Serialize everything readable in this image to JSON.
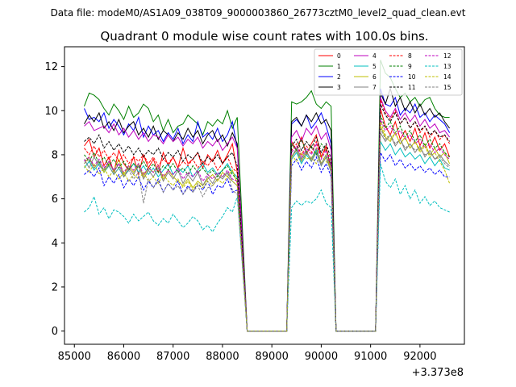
{
  "header": {
    "data_file": "Data file: modeM0/AS1A09_038T09_9000003860_26773cztM0_level2_quad_clean.evt",
    "title": "Quadrant 0 module wise count rates with 100.0s bins."
  },
  "chart_data": {
    "type": "line",
    "title": "Quadrant 0 module wise count rates with 100.0s bins.",
    "xlabel": "",
    "ylabel": "",
    "x_offset_label": "+3.373e8",
    "xlim": [
      84800,
      92900
    ],
    "ylim": [
      -0.6,
      12.9
    ],
    "x_ticks": [
      85000,
      86000,
      87000,
      88000,
      89000,
      90000,
      91000,
      92000
    ],
    "x_tick_labels": [
      "85000",
      "86000",
      "87000",
      "88000",
      "89000",
      "90000",
      "91000",
      "92000"
    ],
    "y_ticks": [
      0,
      2,
      4,
      6,
      8,
      10,
      12
    ],
    "y_tick_labels": [
      "0",
      "2",
      "4",
      "6",
      "8",
      "10",
      "12"
    ],
    "grid": false,
    "legend_position": "top-right",
    "x_segments": [
      [
        85200,
        88300
      ],
      [
        89400,
        90200
      ],
      [
        91200,
        92600
      ]
    ],
    "gap_x": [
      88500,
      88700,
      88900,
      89100,
      89300,
      90300,
      90500,
      90700,
      90900,
      91100
    ],
    "bin_seconds": 100,
    "series": [
      {
        "name": "0",
        "color": "#ff0000",
        "dash": "solid",
        "values": [
          [
            8.4,
            8.7,
            7.9,
            8.3,
            7.5,
            7.9,
            7.2,
            8.2,
            7.6,
            7.3,
            7.9,
            7.1,
            8.0,
            7.4,
            7.8,
            7.2,
            8.1,
            7.5,
            7.9,
            7.4,
            8.3,
            7.6,
            7.8,
            8.1,
            7.4,
            8.0,
            7.7,
            8.2,
            7.6,
            8.0,
            8.5,
            7.2
          ],
          [
            8.6,
            8.2,
            8.8,
            8.0,
            8.5,
            8.9,
            7.9,
            8.4,
            7.2
          ],
          [
            10.1,
            9.3,
            8.9,
            9.5,
            8.7,
            9.1,
            8.6,
            9.2,
            8.4,
            9.0,
            8.3,
            8.8,
            8.2,
            8.5,
            7.9
          ]
        ]
      },
      {
        "name": "1",
        "color": "#008000",
        "dash": "solid",
        "values": [
          [
            10.2,
            10.8,
            10.7,
            10.5,
            10.1,
            9.8,
            10.3,
            10.0,
            9.6,
            10.2,
            9.7,
            9.9,
            10.3,
            10.1,
            9.5,
            9.8,
            9.1,
            9.6,
            9.0,
            9.3,
            9.4,
            9.8,
            9.6,
            9.4,
            8.9,
            9.5,
            9.3,
            9.6,
            9.4,
            10.0,
            9.2,
            9.7
          ],
          [
            10.4,
            10.3,
            10.4,
            10.6,
            10.9,
            10.3,
            10.1,
            10.4,
            10.2
          ],
          [
            12.3,
            11.7,
            11.5,
            11.0,
            10.6,
            10.8,
            10.4,
            10.6,
            10.2,
            10.5,
            10.6,
            10.1,
            9.8,
            9.7,
            9.7
          ]
        ]
      },
      {
        "name": "2",
        "color": "#0000ff",
        "dash": "solid",
        "values": [
          [
            10.1,
            9.6,
            9.7,
            9.5,
            9.9,
            9.2,
            9.6,
            9.3,
            8.9,
            9.4,
            9.1,
            9.7,
            8.8,
            9.3,
            8.9,
            9.1,
            8.6,
            9.0,
            8.7,
            9.2,
            8.5,
            8.9,
            8.6,
            9.5,
            8.8,
            9.0,
            8.7,
            9.2,
            8.6,
            8.9,
            9.5,
            8.3
          ],
          [
            9.4,
            9.6,
            9.3,
            9.8,
            9.2,
            9.5,
            9.9,
            9.3,
            8.5
          ],
          [
            11.0,
            10.3,
            10.2,
            10.6,
            9.8,
            10.1,
            9.9,
            10.3,
            9.7,
            9.9,
            9.5,
            9.8,
            9.6,
            9.4,
            9.0
          ]
        ]
      },
      {
        "name": "3",
        "color": "#000000",
        "dash": "solid",
        "values": [
          [
            9.4,
            9.8,
            9.5,
            9.9,
            9.2,
            9.5,
            9.1,
            9.6,
            9.0,
            9.3,
            9.5,
            8.9,
            9.2,
            8.8,
            9.3,
            8.7,
            9.1,
            8.9,
            8.6,
            9.0,
            8.7,
            9.2,
            8.8,
            9.1,
            8.5,
            8.9,
            9.1,
            8.6,
            8.9,
            8.4,
            9.0,
            8.5
          ],
          [
            9.5,
            9.7,
            9.3,
            9.8,
            9.5,
            9.9,
            9.4,
            9.6,
            9.1
          ],
          [
            10.8,
            10.3,
            11.0,
            10.2,
            10.6,
            10.0,
            10.4,
            9.9,
            10.3,
            9.8,
            10.1,
            9.7,
            9.9,
            9.5,
            9.2
          ]
        ]
      },
      {
        "name": "4",
        "color": "#bf00bf",
        "dash": "solid",
        "values": [
          [
            9.3,
            9.5,
            9.1,
            9.2,
            9.3,
            9.0,
            9.4,
            8.9,
            9.2,
            8.8,
            9.1,
            8.7,
            9.0,
            8.6,
            8.9,
            8.8,
            8.5,
            8.9,
            8.6,
            8.8,
            8.4,
            8.7,
            8.5,
            8.8,
            8.3,
            8.6,
            8.4,
            8.7,
            8.2,
            8.5,
            8.8,
            8.3
          ],
          [
            8.8,
            9.1,
            8.6,
            9.2,
            8.9,
            9.3,
            8.7,
            9.0,
            8.2
          ],
          [
            10.6,
            10.0,
            9.7,
            10.1,
            9.6,
            9.9,
            9.5,
            9.8,
            9.3,
            9.6,
            9.2,
            9.4,
            9.0,
            9.1,
            8.8
          ]
        ]
      },
      {
        "name": "5",
        "color": "#00bfbf",
        "dash": "solid",
        "values": [
          [
            7.4,
            7.7,
            7.3,
            7.6,
            7.2,
            7.5,
            7.1,
            7.4,
            7.0,
            7.3,
            7.6,
            7.2,
            7.5,
            7.1,
            7.4,
            7.0,
            7.3,
            7.6,
            7.1,
            7.4,
            7.2,
            7.5,
            7.0,
            7.3,
            7.6,
            7.2,
            7.4,
            7.1,
            7.3,
            7.6,
            7.2,
            7.0
          ],
          [
            7.8,
            8.1,
            7.6,
            8.0,
            7.7,
            8.2,
            7.5,
            7.9,
            7.2
          ],
          [
            8.6,
            8.2,
            8.5,
            8.0,
            8.3,
            7.9,
            8.1,
            7.8,
            8.0,
            7.6,
            7.9,
            7.5,
            7.8,
            7.4,
            7.3
          ]
        ]
      },
      {
        "name": "6",
        "color": "#bfbf00",
        "dash": "solid",
        "values": [
          [
            7.6,
            7.9,
            7.4,
            7.7,
            7.2,
            7.6,
            7.3,
            7.8,
            7.1,
            7.5,
            7.2,
            7.6,
            7.0,
            7.4,
            7.2,
            7.5,
            6.9,
            7.3,
            7.0,
            6.8,
            6.6,
            6.9,
            6.5,
            6.8,
            6.6,
            6.9,
            7.1,
            6.8,
            7.2,
            7.0,
            7.3,
            6.7
          ],
          [
            7.9,
            8.2,
            7.7,
            8.1,
            7.8,
            8.3,
            7.6,
            8.0,
            7.3
          ],
          [
            9.3,
            8.8,
            8.6,
            9.0,
            8.5,
            8.8,
            8.3,
            8.6,
            8.2,
            8.5,
            8.0,
            8.3,
            7.9,
            8.1,
            7.6
          ]
        ]
      },
      {
        "name": "7",
        "color": "#808080",
        "dash": "solid",
        "values": [
          [
            7.8,
            7.4,
            7.9,
            7.5,
            7.3,
            7.7,
            7.2,
            7.6,
            7.0,
            7.4,
            7.1,
            7.5,
            6.9,
            7.3,
            7.0,
            7.4,
            6.8,
            7.2,
            6.9,
            7.3,
            6.7,
            7.1,
            6.8,
            7.2,
            6.6,
            7.0,
            6.7,
            7.1,
            6.9,
            7.2,
            6.8,
            6.6
          ],
          [
            7.9,
            8.3,
            7.8,
            8.2,
            7.7,
            8.1,
            7.5,
            7.9,
            7.2
          ],
          [
            9.0,
            8.6,
            8.9,
            8.4,
            8.7,
            8.2,
            8.5,
            8.1,
            8.4,
            7.9,
            8.2,
            7.8,
            8.0,
            7.7,
            7.5
          ]
        ]
      },
      {
        "name": "8",
        "color": "#ff0000",
        "dash": "dashed",
        "values": [
          [
            8.3,
            8.0,
            8.4,
            7.9,
            8.2,
            7.8,
            8.1,
            7.7,
            8.0,
            7.6,
            7.9,
            7.7,
            8.0,
            7.6,
            7.9,
            7.5,
            7.8,
            7.6,
            7.9,
            7.4,
            7.7,
            7.5,
            7.8,
            7.4,
            7.7,
            7.5,
            7.8,
            7.3,
            7.6,
            7.9,
            7.4,
            7.2
          ],
          [
            8.2,
            8.5,
            8.0,
            8.4,
            8.1,
            8.6,
            7.9,
            8.3,
            7.6
          ],
          [
            10.5,
            9.9,
            9.6,
            10.0,
            9.4,
            9.7,
            9.2,
            9.5,
            9.0,
            9.3,
            8.8,
            9.1,
            8.7,
            8.9,
            8.5
          ]
        ]
      },
      {
        "name": "9",
        "color": "#008000",
        "dash": "dashed",
        "values": [
          [
            8.0,
            7.7,
            8.1,
            7.6,
            7.9,
            7.5,
            7.8,
            7.4,
            7.7,
            7.3,
            7.6,
            7.4,
            7.7,
            7.3,
            7.6,
            7.2,
            7.5,
            7.3,
            7.6,
            7.2,
            7.4,
            7.1,
            7.5,
            7.2,
            7.4,
            7.1,
            7.3,
            7.0,
            7.3,
            7.5,
            7.1,
            6.9
          ],
          [
            8.5,
            8.2,
            8.7,
            8.1,
            8.4,
            8.0,
            8.5,
            8.2,
            7.5
          ],
          [
            9.8,
            9.2,
            9.5,
            9.0,
            9.3,
            8.8,
            9.1,
            8.6,
            8.9,
            8.4,
            8.7,
            8.3,
            8.5,
            8.1,
            7.9
          ]
        ]
      },
      {
        "name": "10",
        "color": "#0000ff",
        "dash": "dashed",
        "values": [
          [
            7.1,
            7.3,
            7.0,
            7.4,
            6.6,
            7.0,
            6.7,
            7.1,
            6.5,
            6.9,
            6.6,
            7.0,
            6.4,
            6.8,
            6.5,
            6.9,
            6.3,
            6.7,
            6.4,
            6.8,
            6.2,
            6.6,
            6.3,
            6.7,
            6.4,
            6.8,
            6.2,
            6.6,
            6.5,
            6.9,
            6.3,
            6.4
          ],
          [
            7.5,
            7.8,
            7.3,
            7.7,
            7.4,
            7.9,
            7.2,
            7.6,
            7.0
          ],
          [
            8.1,
            7.7,
            8.0,
            7.5,
            7.8,
            7.4,
            7.6,
            7.3,
            7.5,
            7.2,
            7.4,
            7.1,
            7.3,
            7.0,
            7.0
          ]
        ]
      },
      {
        "name": "11",
        "color": "#000000",
        "dash": "dashed",
        "values": [
          [
            8.6,
            8.8,
            8.5,
            8.9,
            8.3,
            8.6,
            8.2,
            8.5,
            8.1,
            8.4,
            8.0,
            8.3,
            7.9,
            8.2,
            8.0,
            8.3,
            7.8,
            8.1,
            7.9,
            8.2,
            7.7,
            8.0,
            7.8,
            8.1,
            7.6,
            7.9,
            7.7,
            8.0,
            7.6,
            7.9,
            8.1,
            7.5
          ],
          [
            8.4,
            8.7,
            8.2,
            8.6,
            8.3,
            8.8,
            8.1,
            8.5,
            7.8
          ],
          [
            10.3,
            9.8,
            9.5,
            9.9,
            9.4,
            9.7,
            9.2,
            9.5,
            9.1,
            9.3,
            8.9,
            9.1,
            8.8,
            8.9,
            8.6
          ]
        ]
      },
      {
        "name": "12",
        "color": "#bf00bf",
        "dash": "dashed",
        "values": [
          [
            7.7,
            7.9,
            7.5,
            7.8,
            7.4,
            7.7,
            7.3,
            7.6,
            7.2,
            7.5,
            7.3,
            7.6,
            7.1,
            7.4,
            7.2,
            7.5,
            7.0,
            7.3,
            7.1,
            7.4,
            6.9,
            7.2,
            7.0,
            7.3,
            6.8,
            7.1,
            6.9,
            7.2,
            7.0,
            7.3,
            6.9,
            6.8
          ],
          [
            8.1,
            8.4,
            7.9,
            8.3,
            8.0,
            8.5,
            7.8,
            8.2,
            7.5
          ],
          [
            9.6,
            9.1,
            9.3,
            8.9,
            9.1,
            8.7,
            8.9,
            8.5,
            8.7,
            8.3,
            8.5,
            8.1,
            8.3,
            8.0,
            7.8
          ]
        ]
      },
      {
        "name": "13",
        "color": "#00bfbf",
        "dash": "dashed",
        "values": [
          [
            5.4,
            5.6,
            6.1,
            5.3,
            5.6,
            5.1,
            5.5,
            5.4,
            5.2,
            4.9,
            5.3,
            5.0,
            5.2,
            5.4,
            5.0,
            4.8,
            5.1,
            4.9,
            5.3,
            5.0,
            4.7,
            4.9,
            5.2,
            5.0,
            4.6,
            4.8,
            4.5,
            4.9,
            5.2,
            5.6,
            5.4,
            6.1
          ],
          [
            5.6,
            5.9,
            5.7,
            5.9,
            5.8,
            6.0,
            6.4,
            5.8,
            5.6
          ],
          [
            7.6,
            6.8,
            6.5,
            6.9,
            6.2,
            6.6,
            6.0,
            6.4,
            5.8,
            6.1,
            5.7,
            5.9,
            5.6,
            5.5,
            5.4
          ]
        ]
      },
      {
        "name": "14",
        "color": "#bfbf00",
        "dash": "dashed",
        "values": [
          [
            7.5,
            7.2,
            7.6,
            7.1,
            7.4,
            7.0,
            7.3,
            6.9,
            7.2,
            6.8,
            7.1,
            6.9,
            7.2,
            6.8,
            7.0,
            6.7,
            7.1,
            6.8,
            6.6,
            6.9,
            6.5,
            6.8,
            6.4,
            6.7,
            6.5,
            6.8,
            6.6,
            6.9,
            6.7,
            7.0,
            6.8,
            6.6
          ],
          [
            8.0,
            7.7,
            8.1,
            7.8,
            7.9,
            7.6,
            8.0,
            7.7,
            7.4
          ],
          [
            9.5,
            8.9,
            8.7,
            9.0,
            8.5,
            8.8,
            8.3,
            8.6,
            8.1,
            8.4,
            7.9,
            8.1,
            7.7,
            7.3,
            6.7
          ]
        ]
      },
      {
        "name": "15",
        "color": "#808080",
        "dash": "dashed",
        "values": [
          [
            7.6,
            7.8,
            7.4,
            7.7,
            7.3,
            7.5,
            7.1,
            7.4,
            7.0,
            7.3,
            6.9,
            7.2,
            5.8,
            6.9,
            6.5,
            6.8,
            6.3,
            6.7,
            6.4,
            6.6,
            6.2,
            6.5,
            6.3,
            6.6,
            6.1,
            6.5,
            6.6,
            6.9,
            7.0,
            7.2,
            6.4,
            6.2
          ],
          [
            7.9,
            8.2,
            7.7,
            8.1,
            7.8,
            8.3,
            7.6,
            8.0,
            7.4
          ],
          [
            9.2,
            8.7,
            8.9,
            8.5,
            8.7,
            8.3,
            8.5,
            8.2,
            8.3,
            8.0,
            8.1,
            7.8,
            7.9,
            7.6,
            7.4
          ]
        ]
      }
    ]
  }
}
